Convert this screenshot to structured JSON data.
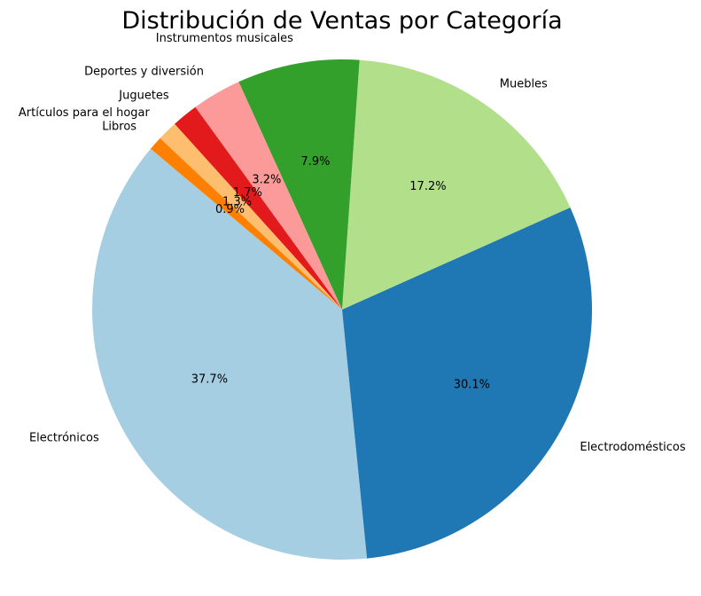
{
  "chart_data": {
    "type": "pie",
    "title": "Distribución de Ventas por Categoría",
    "categories": [
      "Electrónicos",
      "Electrodomésticos",
      "Muebles",
      "Instrumentos musicales",
      "Deportes y diversión",
      "Juguetes",
      "Artículos para el hogar",
      "Libros"
    ],
    "values": [
      37.7,
      30.1,
      17.2,
      7.9,
      3.2,
      1.7,
      1.3,
      0.9
    ],
    "value_labels": [
      "37.7%",
      "30.1%",
      "17.2%",
      "7.9%",
      "3.2%",
      "1.7%",
      "1.3%",
      "0.9%"
    ],
    "colors": [
      "#a6cee3",
      "#1f78b4",
      "#b2df8a",
      "#33a02c",
      "#fb9a99",
      "#e31a1c",
      "#fdbf6f",
      "#ff7f00"
    ],
    "start_angle_deg": 140,
    "direction": "counterclockwise",
    "legend": "none",
    "grid": false
  }
}
